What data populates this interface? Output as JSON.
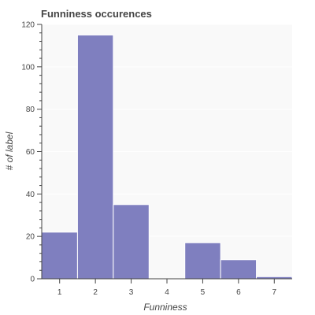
{
  "chart_data": {
    "type": "bar",
    "title": "Funniness occurences",
    "xlabel": "Funniness",
    "ylabel": "# of label",
    "categories": [
      "1",
      "2",
      "3",
      "4",
      "5",
      "6",
      "7"
    ],
    "values": [
      22,
      115,
      35,
      0,
      17,
      9,
      1
    ],
    "ylim": [
      0,
      120
    ],
    "yticks": [
      0,
      20,
      40,
      60,
      80,
      100,
      120
    ],
    "xlim": [
      0.5,
      7.5
    ],
    "grid": true,
    "colors": {
      "bar": "#7f7fbf",
      "bar_edge": "#ffffff",
      "plot_background": "#f9f9f9",
      "axis": "#444444",
      "grid": "#ffffff"
    }
  }
}
